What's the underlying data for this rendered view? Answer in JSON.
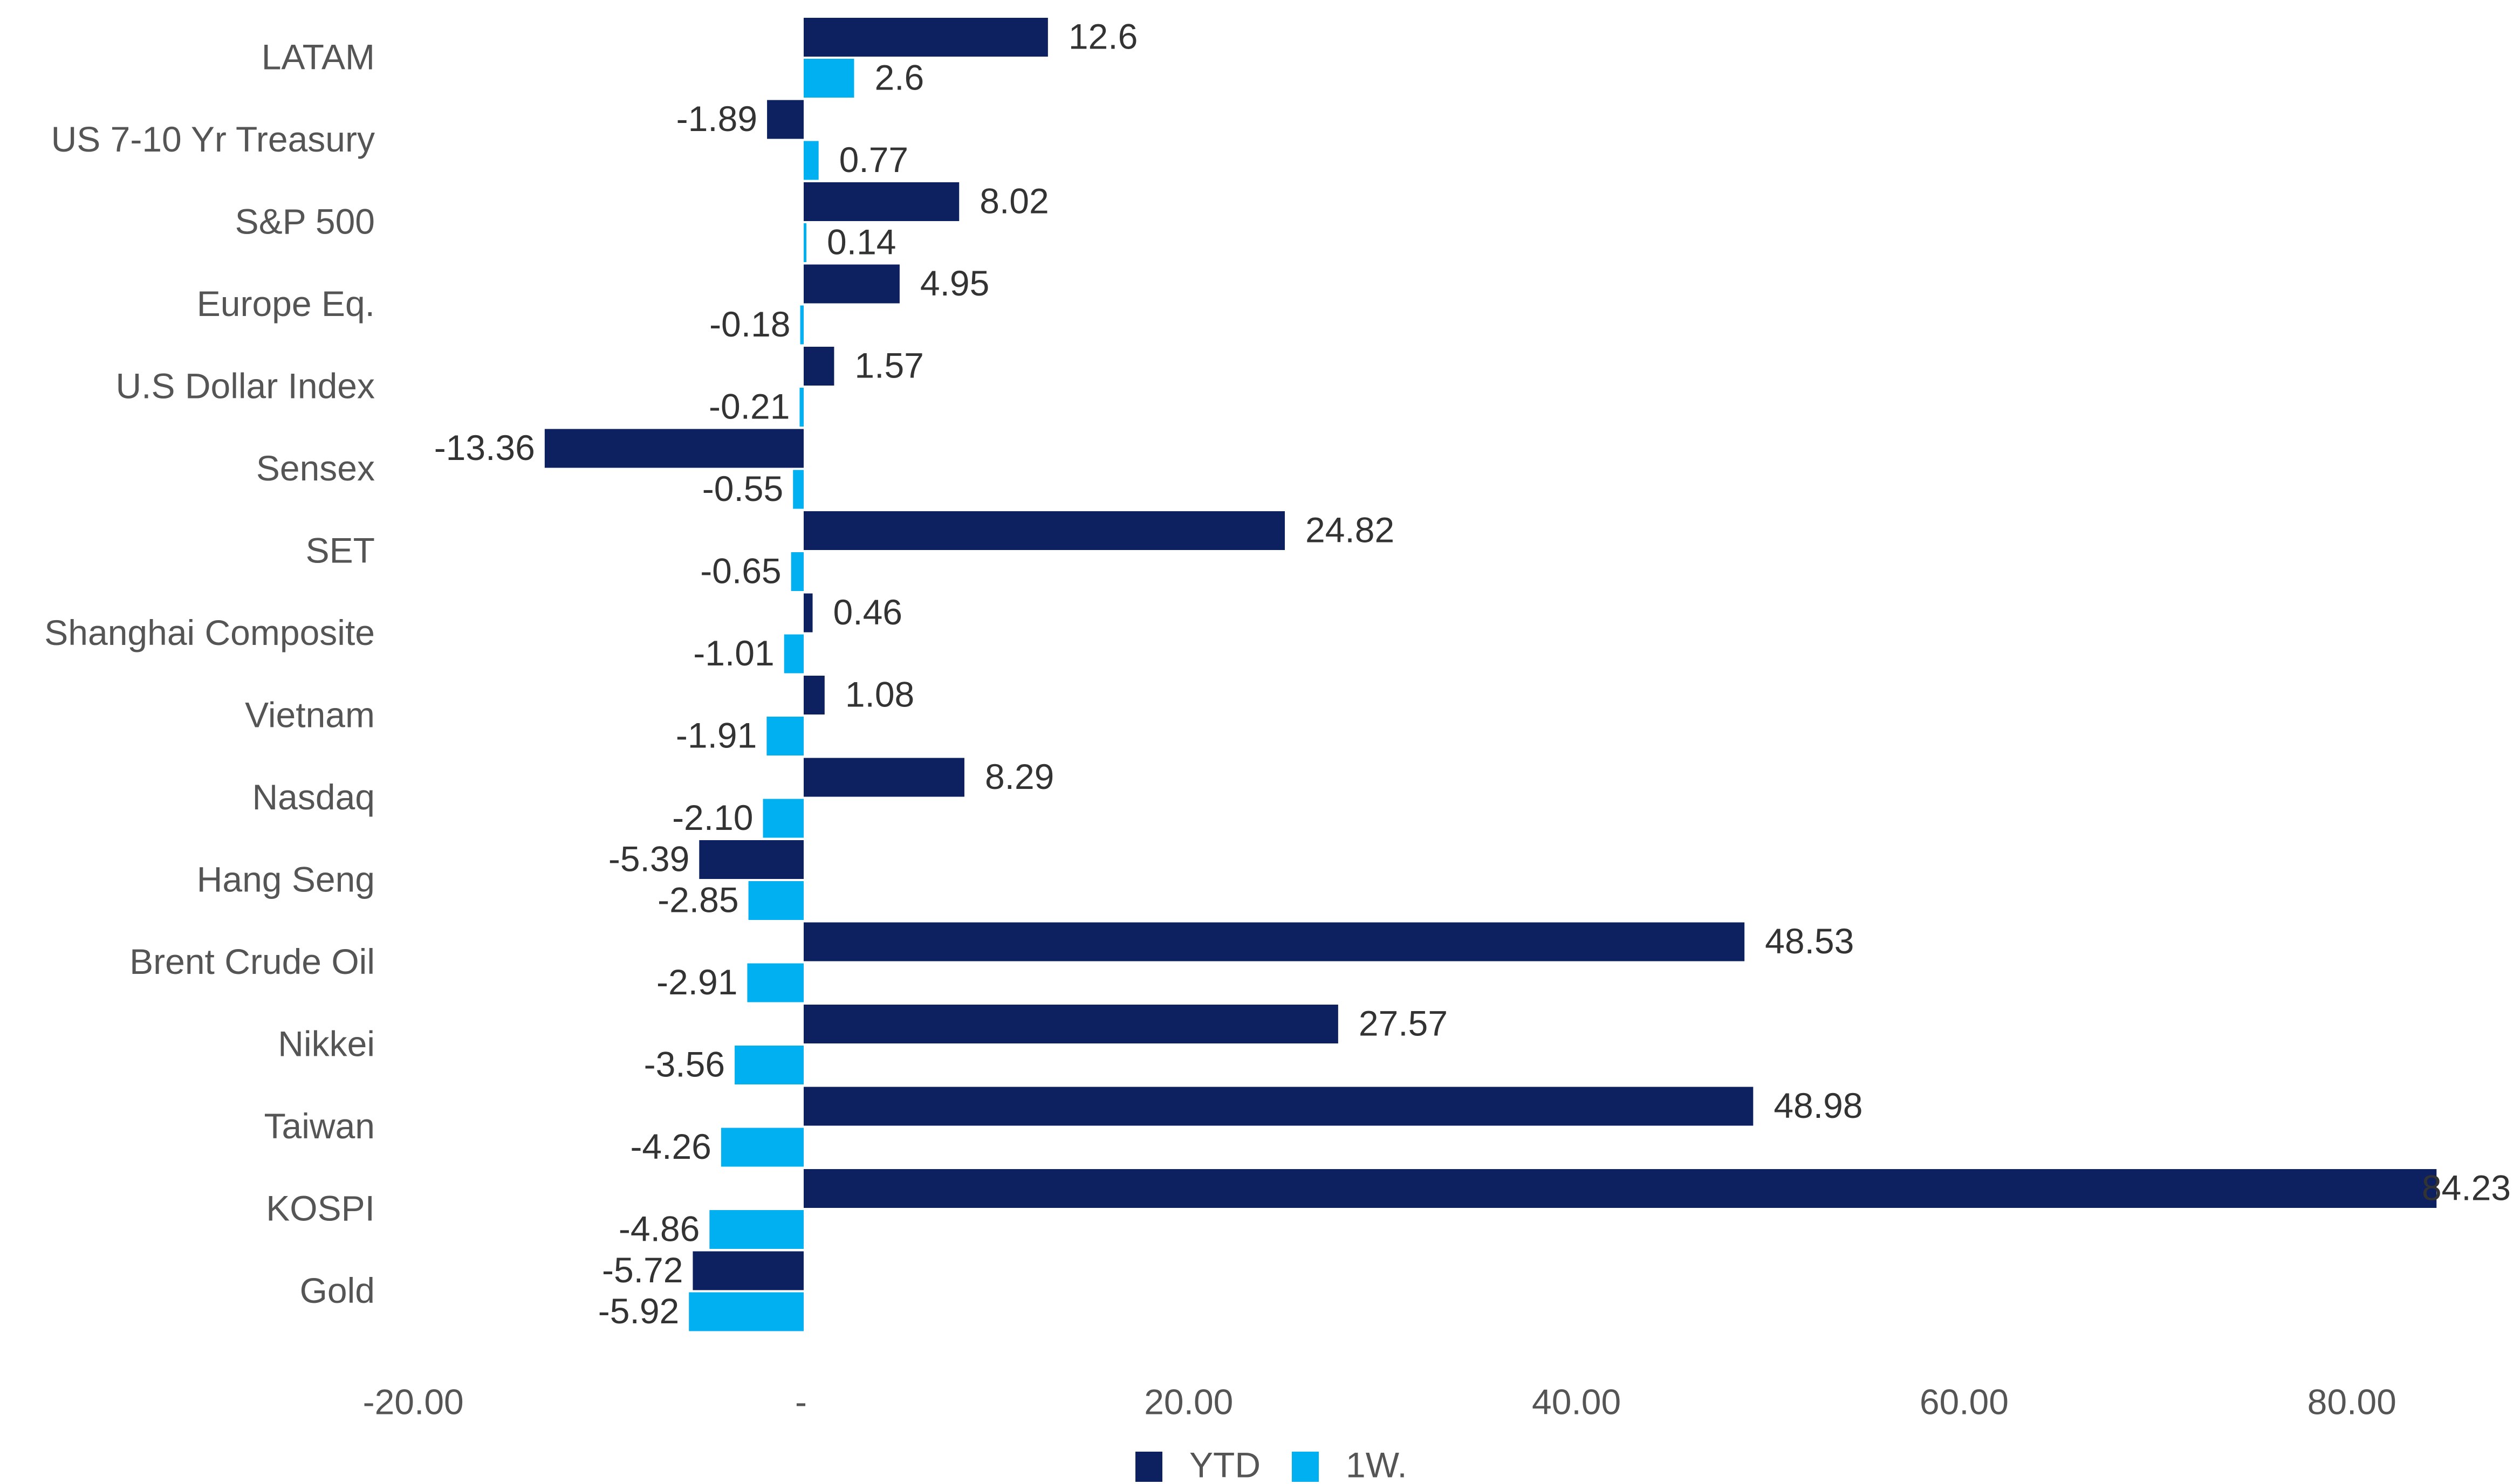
{
  "chart_data": {
    "type": "bar",
    "orientation": "horizontal",
    "categories": [
      "LATAM",
      "US 7-10 Yr Treasury",
      "S&P 500",
      "Europe Eq.",
      "U.S Dollar Index",
      "Sensex",
      "SET",
      "Shanghai Composite",
      "Vietnam",
      "Nasdaq",
      "Hang Seng",
      "Brent Crude Oil",
      "Nikkei",
      "Taiwan",
      "KOSPI",
      "Gold"
    ],
    "series": [
      {
        "name": "YTD",
        "color": "#0d2160",
        "values": [
          12.6,
          -1.89,
          8.02,
          4.95,
          1.57,
          -13.36,
          24.82,
          0.46,
          1.08,
          8.29,
          -5.39,
          48.53,
          27.57,
          48.98,
          84.23,
          -5.72
        ],
        "value_labels": [
          "12.6",
          "-1.89",
          "8.02",
          "4.95",
          "1.57",
          "-13.36",
          "24.82",
          "0.46",
          "1.08",
          "8.29",
          "-5.39",
          "48.53",
          "27.57",
          "48.98",
          "84.23",
          "-5.72"
        ]
      },
      {
        "name": "1W.",
        "color": "#00b0f0",
        "values": [
          2.6,
          0.77,
          0.14,
          -0.18,
          -0.21,
          -0.55,
          -0.65,
          -1.01,
          -1.91,
          -2.1,
          -2.85,
          -2.91,
          -3.56,
          -4.26,
          -4.86,
          -5.92
        ],
        "value_labels": [
          "2.6",
          "0.77",
          "0.14",
          "-0.18",
          "-0.21",
          "-0.55",
          "-0.65",
          "-1.01",
          "-1.91",
          "-2.10",
          "-2.85",
          "-2.91",
          "-3.56",
          "-4.26",
          "-4.86",
          "-5.92"
        ]
      }
    ],
    "xlim": [
      -20,
      85
    ],
    "x_ticks": [
      -20,
      0,
      20,
      40,
      60,
      80
    ],
    "x_tick_labels": [
      "-20.00",
      "-",
      "20.00",
      "40.00",
      "60.00",
      "80.00"
    ],
    "grid": false,
    "legend_position": "bottom-center",
    "title": "",
    "xlabel": "",
    "ylabel": ""
  }
}
